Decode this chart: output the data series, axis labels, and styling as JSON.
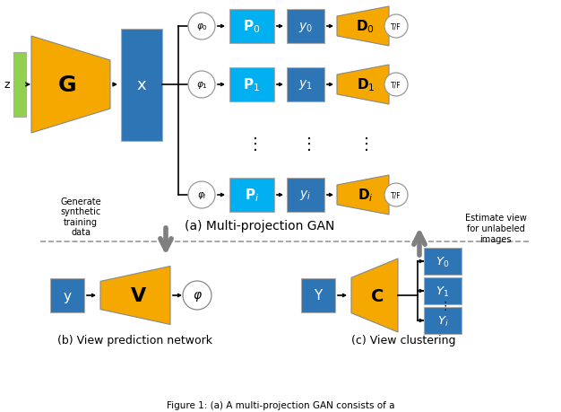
{
  "colors": {
    "orange": "#F5A800",
    "blue_dark": "#2E75B6",
    "blue_light": "#00B0F0",
    "green": "#92D050",
    "gray": "#7F7F7F",
    "white": "#FFFFFF",
    "black": "#000000",
    "bg": "#FFFFFF"
  },
  "label_a": "(a) Multi-projection GAN",
  "label_b": "(b) View prediction network",
  "label_c": "(c) View clustering",
  "caption": "Figure 1: (a) A multi-projection GAN consists of a"
}
